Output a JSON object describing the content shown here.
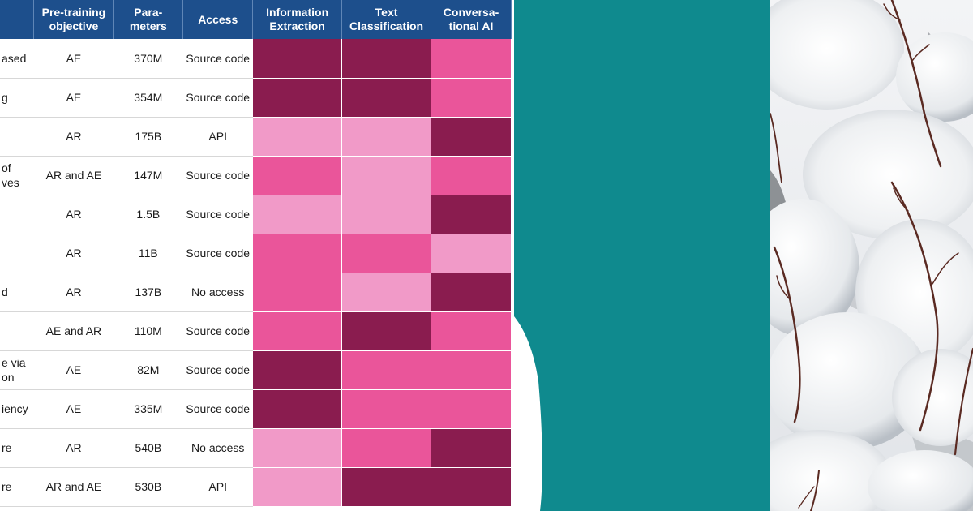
{
  "table": {
    "headers": [
      {
        "text": ""
      },
      {
        "text": "Pre-training objective"
      },
      {
        "text": "Para-meters"
      },
      {
        "text": "Access"
      },
      {
        "text": "Information Extraction"
      },
      {
        "text": "Text Classification"
      },
      {
        "text": "Conversa-tional AI"
      }
    ],
    "rows": [
      {
        "desc": "ased",
        "objective": "AE",
        "params": "370M",
        "access": "Source code",
        "levels": [
          "high",
          "high",
          "mid"
        ]
      },
      {
        "desc": "g",
        "objective": "AE",
        "params": "354M",
        "access": "Source code",
        "levels": [
          "high",
          "high",
          "mid"
        ]
      },
      {
        "desc": "",
        "objective": "AR",
        "params": "175B",
        "access": "API",
        "levels": [
          "low",
          "low",
          "high"
        ]
      },
      {
        "desc": "of\nves",
        "objective": "AR and AE",
        "params": "147M",
        "access": "Source code",
        "levels": [
          "mid",
          "low",
          "mid"
        ]
      },
      {
        "desc": "",
        "objective": "AR",
        "params": "1.5B",
        "access": "Source code",
        "levels": [
          "low",
          "low",
          "high"
        ]
      },
      {
        "desc": "",
        "objective": "AR",
        "params": "11B",
        "access": "Source code",
        "levels": [
          "mid",
          "mid",
          "low"
        ]
      },
      {
        "desc": "d",
        "objective": "AR",
        "params": "137B",
        "access": "No access",
        "levels": [
          "mid",
          "low",
          "high"
        ]
      },
      {
        "desc": "",
        "objective": "AE and AR",
        "params": "110M",
        "access": "Source code",
        "levels": [
          "mid",
          "high",
          "mid"
        ]
      },
      {
        "desc": "e via\non",
        "objective": "AE",
        "params": "82M",
        "access": "Source code",
        "levels": [
          "high",
          "mid",
          "mid"
        ]
      },
      {
        "desc": "iency",
        "objective": "AE",
        "params": "335M",
        "access": "Source code",
        "levels": [
          "high",
          "mid",
          "mid"
        ]
      },
      {
        "desc": "re",
        "objective": "AR",
        "params": "540B",
        "access": "No access",
        "levels": [
          "low",
          "mid",
          "high"
        ]
      },
      {
        "desc": "re",
        "objective": "AR and AE",
        "params": "530B",
        "access": "API",
        "levels": [
          "low",
          "high",
          "high"
        ]
      }
    ]
  },
  "colors": {
    "header_bg": "#1d4f8c",
    "level_high": "#8a1c4f",
    "level_mid": "#ea559a",
    "level_low": "#f19ac8",
    "teal": "#0f8a8e"
  },
  "icons": {
    "snow_photo": "snow-with-bare-twigs-photo",
    "teal_shape": "teal-block-with-rounded-notch"
  }
}
